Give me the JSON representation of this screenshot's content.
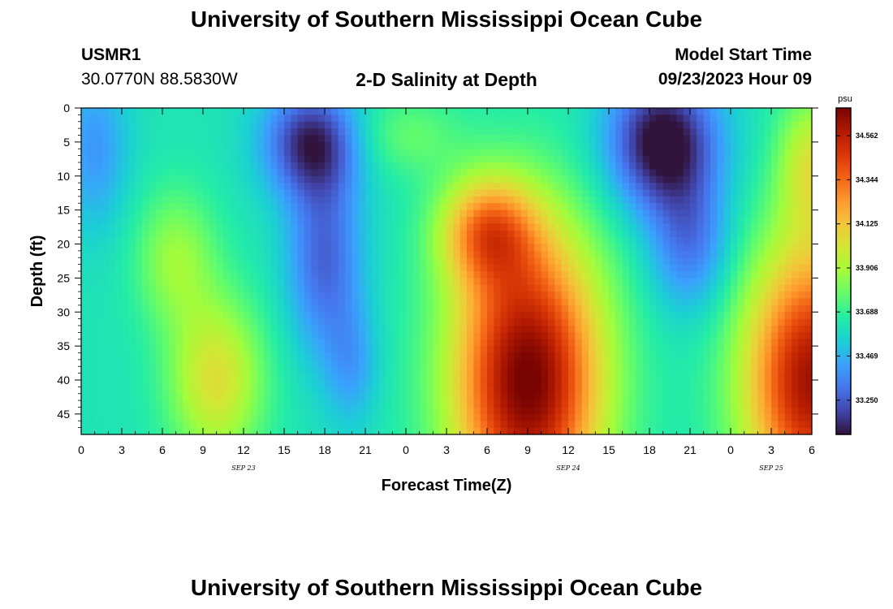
{
  "header": {
    "title": "University of Southern Mississippi Ocean Cube",
    "station": "USMR1",
    "location": "30.0770N  88.5830W",
    "plot_title": "2-D Salinity at Depth",
    "model_label": "Model Start Time",
    "model_time": "09/23/2023 Hour 09"
  },
  "footer": {
    "title": "University of Southern Mississippi Ocean Cube"
  },
  "chart_data": {
    "type": "heatmap",
    "title": "2-D Salinity at Depth",
    "xlabel": "Forecast Time(Z)",
    "ylabel": "Depth (ft)",
    "x_tick_labels": [
      "0",
      "3",
      "6",
      "9",
      "12",
      "15",
      "18",
      "21",
      "0",
      "3",
      "6",
      "9",
      "12",
      "15",
      "18",
      "21",
      "0",
      "3",
      "6"
    ],
    "x_range_hours": [
      0,
      54
    ],
    "date_labels": [
      {
        "text": "SEP 23",
        "at_hour": 12
      },
      {
        "text": "SEP 24",
        "at_hour": 36
      },
      {
        "text": "SEP 25",
        "at_hour": 51
      }
    ],
    "y_ticks": [
      0,
      5,
      10,
      15,
      20,
      25,
      30,
      35,
      40,
      45
    ],
    "ylim": [
      0,
      48
    ],
    "y_inverted": true,
    "colorbar": {
      "unit": "psu",
      "ticks": [
        "34.562",
        "34.344",
        "34.125",
        "33.906",
        "33.688",
        "33.469",
        "33.250"
      ],
      "tick_values": [
        34.562,
        34.344,
        34.125,
        33.906,
        33.688,
        33.469,
        33.25
      ],
      "range": [
        33.08,
        34.7
      ],
      "colormap": [
        "#30123b",
        "#4145ab",
        "#4675ed",
        "#39a2fc",
        "#1bcfd4",
        "#24eca6",
        "#61fc6c",
        "#a4fc3b",
        "#d1e834",
        "#f3c63a",
        "#fe9b2d",
        "#f36315",
        "#d93806",
        "#b11901",
        "#7a0402"
      ]
    },
    "grid": false,
    "legend": "colorbar-right",
    "description_points": [
      {
        "hour": 0,
        "depth_ft": 0,
        "salinity": 33.55
      },
      {
        "hour": 17,
        "depth_ft": 7,
        "salinity": 33.2
      },
      {
        "hour": 10,
        "depth_ft": 42,
        "salinity": 34.1
      },
      {
        "hour": 20,
        "depth_ft": 47,
        "salinity": 33.7
      },
      {
        "hour": 33,
        "depth_ft": 40,
        "salinity": 34.65
      },
      {
        "hour": 43,
        "depth_ft": 6,
        "salinity": 33.15
      },
      {
        "hour": 54,
        "depth_ft": 48,
        "salinity": 34.65
      }
    ]
  }
}
